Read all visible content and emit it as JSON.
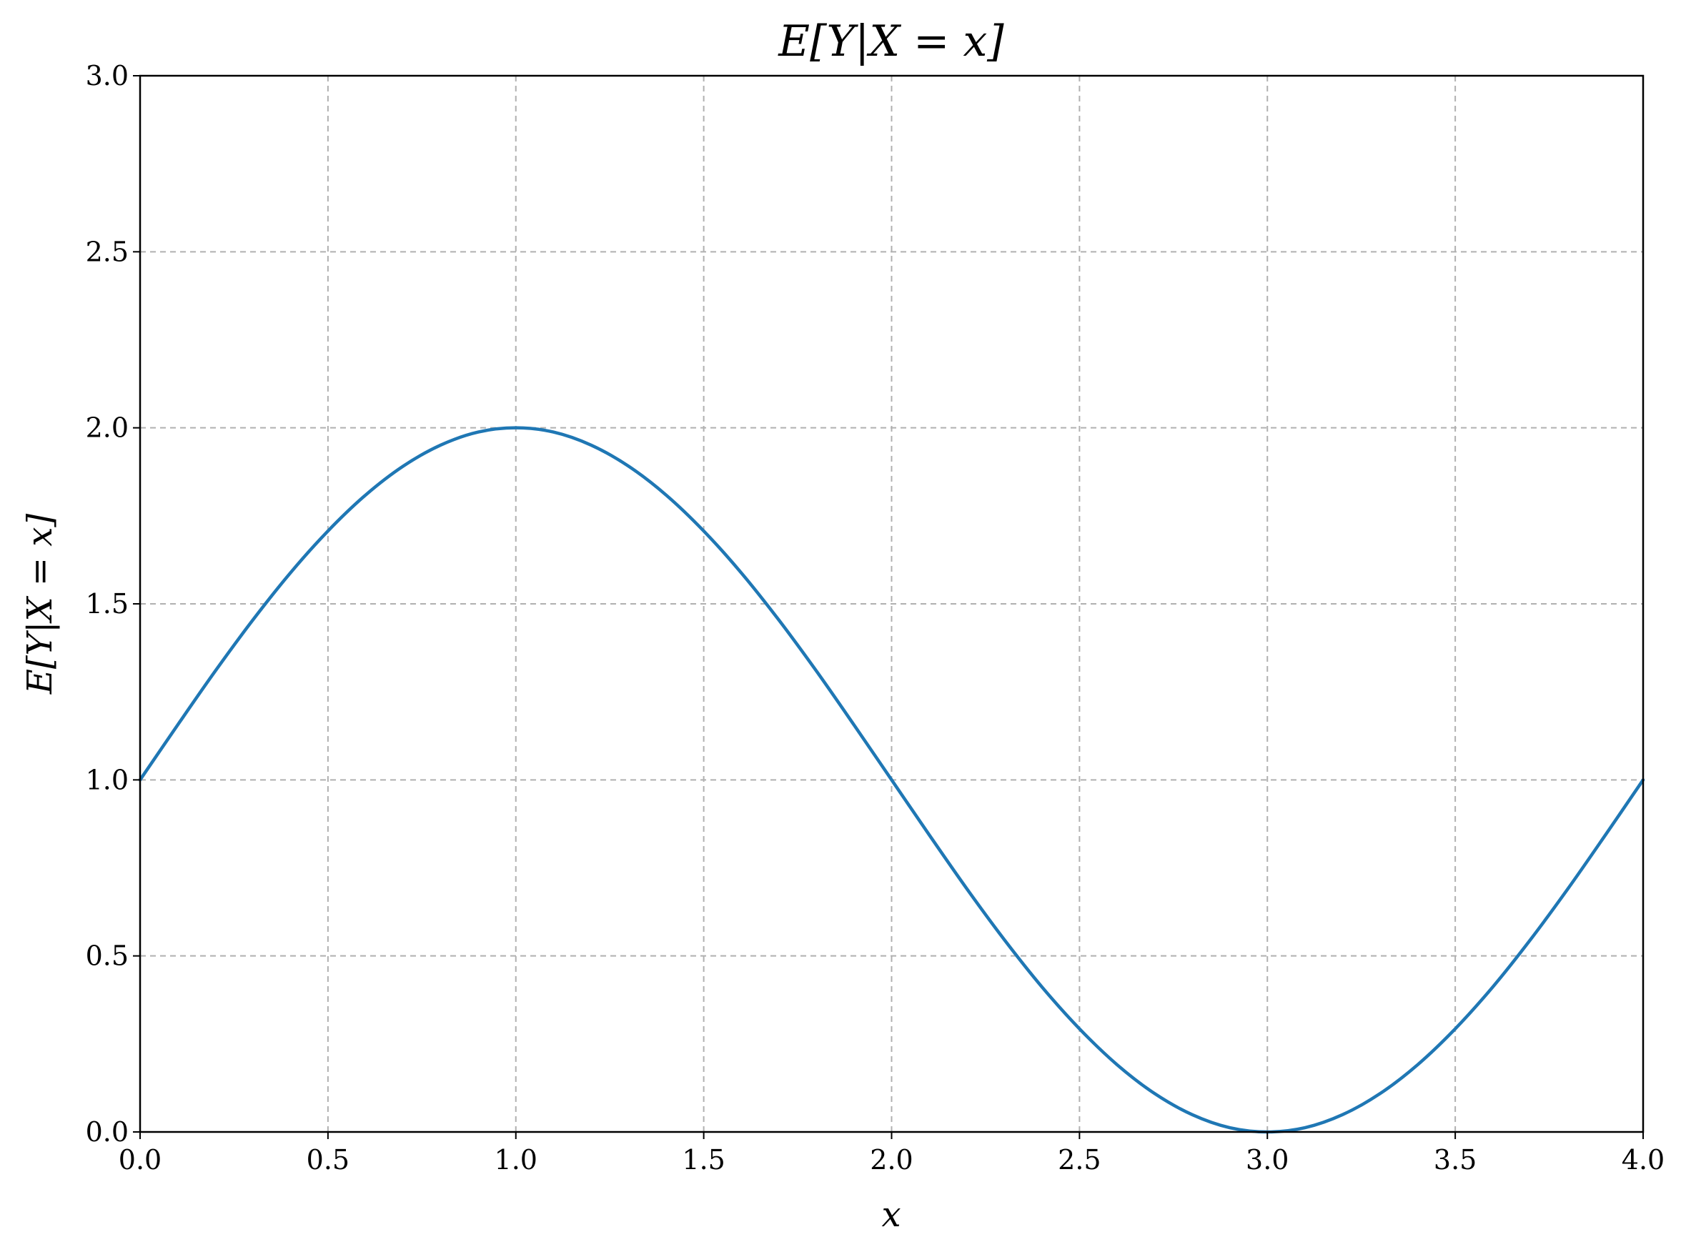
{
  "chart_data": {
    "type": "line",
    "title": "E[Y|X = x]",
    "xlabel": "x",
    "ylabel": "E[Y|X = x]",
    "xlim": [
      0,
      4
    ],
    "ylim": [
      0,
      3
    ],
    "xticks": [
      0,
      0.5,
      1,
      1.5,
      2,
      2.5,
      3,
      3.5,
      4
    ],
    "xtick_labels": [
      "0.0",
      "0.5",
      "1.0",
      "1.5",
      "2.0",
      "2.5",
      "3.0",
      "3.5",
      "4.0"
    ],
    "yticks": [
      0,
      0.5,
      1,
      1.5,
      2,
      2.5,
      3
    ],
    "ytick_labels": [
      "0.0",
      "0.5",
      "1.0",
      "1.5",
      "2.0",
      "2.5",
      "3.0"
    ],
    "grid": true,
    "grid_style": "dashed",
    "line_color": "#1f77b4",
    "grid_color": "#b0b0b0",
    "series": [
      {
        "x": [
          0,
          0.1,
          0.2,
          0.3,
          0.4,
          0.5,
          0.6,
          0.7,
          0.8,
          0.9,
          1.0,
          1.1,
          1.2,
          1.3,
          1.4,
          1.5,
          1.6,
          1.7,
          1.8,
          1.9,
          2.0,
          2.1,
          2.2,
          2.3,
          2.4,
          2.5,
          2.6,
          2.7,
          2.8,
          2.9,
          3.0,
          3.1,
          3.2,
          3.3,
          3.4,
          3.5,
          3.6,
          3.7,
          3.8,
          3.9,
          4.0
        ],
        "y": [
          1.0,
          1.156,
          1.309,
          1.454,
          1.588,
          1.707,
          1.809,
          1.891,
          1.951,
          1.988,
          2.0,
          1.988,
          1.951,
          1.891,
          1.809,
          1.707,
          1.588,
          1.454,
          1.309,
          1.156,
          1.0,
          0.844,
          0.691,
          0.546,
          0.412,
          0.293,
          0.191,
          0.109,
          0.049,
          0.012,
          0.0,
          0.012,
          0.049,
          0.109,
          0.191,
          0.293,
          0.412,
          0.546,
          0.691,
          0.844,
          1.0
        ]
      }
    ]
  }
}
